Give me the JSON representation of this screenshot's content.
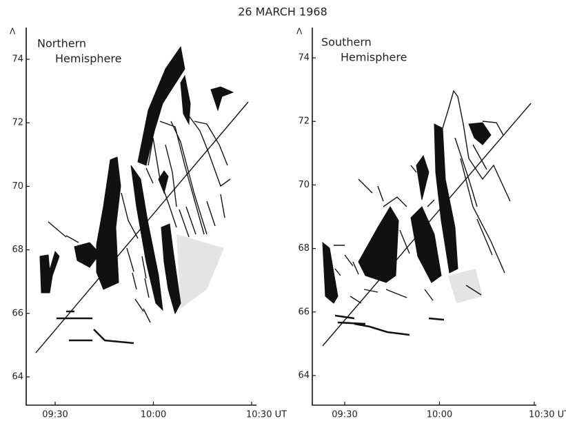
{
  "title": "26 MARCH 1968",
  "panels": [
    {
      "label": [
        "Northern",
        "Hemisphere"
      ],
      "y_label": "Λ",
      "yticks": [
        64,
        66,
        68,
        70,
        72,
        74
      ],
      "xticks": [
        "09:30",
        "10:00",
        "10:30 UT"
      ]
    },
    {
      "label": [
        "Southern",
        "Hemisphere"
      ],
      "y_label": "Λ",
      "yticks": [
        64,
        66,
        68,
        70,
        72,
        74
      ],
      "xticks": [
        "09:30",
        "10:00",
        "10:30 UT"
      ]
    }
  ]
}
